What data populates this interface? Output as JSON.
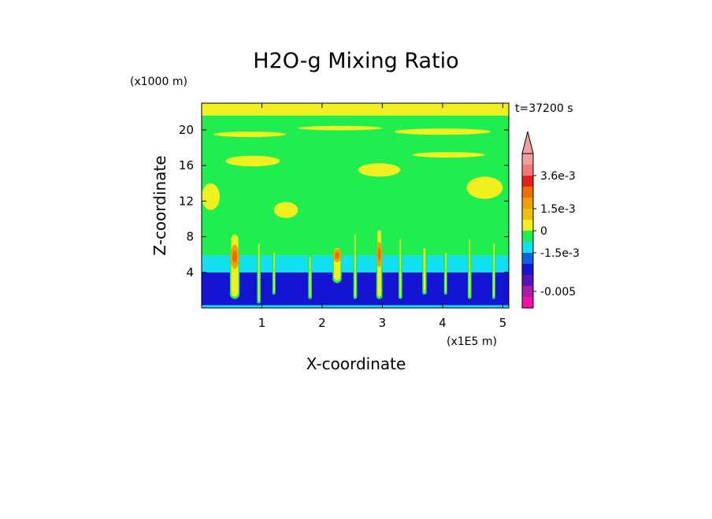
{
  "chart_data": {
    "type": "heatmap",
    "title": "H2O-g Mixing Ratio",
    "xlabel": "X-coordinate",
    "ylabel": "Z-coordinate",
    "x_unit": "(x1E5 m)",
    "y_unit": "(x1000 m)",
    "time_label": "t=37200 s",
    "xlim": [
      0,
      5.1
    ],
    "ylim": [
      0,
      23
    ],
    "x_ticks": [
      "1",
      "2",
      "3",
      "4",
      "5"
    ],
    "y_ticks": [
      "4",
      "8",
      "12",
      "16",
      "20"
    ],
    "x_tick_values": [
      1,
      2,
      3,
      4,
      5
    ],
    "y_tick_values": [
      4,
      8,
      12,
      16,
      20
    ],
    "colorbar": {
      "colors": [
        "#ee10a8",
        "#a81ca8",
        "#5a14b4",
        "#1414d2",
        "#1060e0",
        "#12e0f0",
        "#20ee50",
        "#f0f020",
        "#f0c010",
        "#f0a000",
        "#f06c00",
        "#e82018",
        "#f07878",
        "#f0a0a0"
      ],
      "labels": [
        {
          "text": "3.6e-3",
          "level": 12
        },
        {
          "text": "1.5e-3",
          "level": 9
        },
        {
          "text": "0",
          "level": 7
        },
        {
          "text": "-1.5e-3",
          "level": 5
        },
        {
          "text": "-0.005",
          "level": 1.5
        }
      ]
    },
    "layers": [
      {
        "name": "dark-blue",
        "z": [
          0.3,
          4.0
        ],
        "color": "#1414d2"
      },
      {
        "name": "cyan",
        "z": [
          4.0,
          5.9
        ],
        "color": "#12e0f0"
      },
      {
        "name": "green",
        "z": [
          5.9,
          22.5
        ],
        "color": "#20ee50"
      },
      {
        "name": "yellow-top",
        "z": [
          21.6,
          23
        ],
        "color": "#f0f020"
      }
    ],
    "plumes": [
      {
        "x": 0.55,
        "z": [
          1.0,
          8.5
        ],
        "w": 0.16,
        "core": true
      },
      {
        "x": 0.95,
        "z": [
          0.5,
          7.5
        ],
        "w": 0.06,
        "core": false
      },
      {
        "x": 1.2,
        "z": [
          1.5,
          6.5
        ],
        "w": 0.05,
        "core": false
      },
      {
        "x": 1.8,
        "z": [
          1.0,
          6.0
        ],
        "w": 0.06,
        "core": false
      },
      {
        "x": 2.25,
        "z": [
          2.8,
          7.0
        ],
        "w": 0.15,
        "core": true
      },
      {
        "x": 2.55,
        "z": [
          1.0,
          8.5
        ],
        "w": 0.06,
        "core": false
      },
      {
        "x": 2.95,
        "z": [
          1.0,
          9.0
        ],
        "w": 0.1,
        "core": true
      },
      {
        "x": 3.3,
        "z": [
          1.0,
          8.0
        ],
        "w": 0.06,
        "core": false
      },
      {
        "x": 3.7,
        "z": [
          1.5,
          7.0
        ],
        "w": 0.07,
        "core": false
      },
      {
        "x": 4.05,
        "z": [
          1.5,
          6.5
        ],
        "w": 0.05,
        "core": false
      },
      {
        "x": 4.45,
        "z": [
          1.0,
          8.0
        ],
        "w": 0.06,
        "core": false
      },
      {
        "x": 4.85,
        "z": [
          1.0,
          7.5
        ],
        "w": 0.05,
        "core": false
      }
    ]
  }
}
